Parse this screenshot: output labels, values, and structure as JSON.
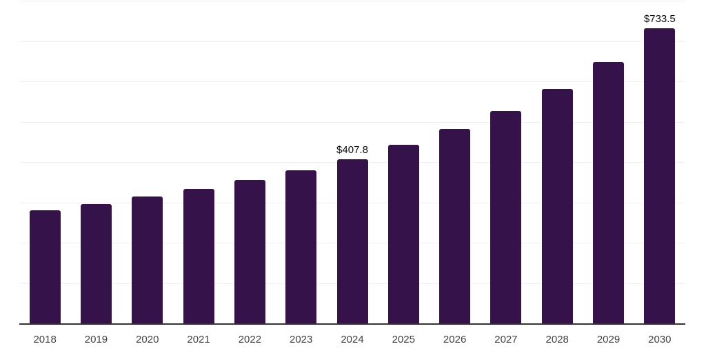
{
  "chart_data": {
    "type": "bar",
    "title": "",
    "xlabel": "",
    "ylabel": "",
    "categories": [
      "2018",
      "2019",
      "2020",
      "2021",
      "2022",
      "2023",
      "2024",
      "2025",
      "2026",
      "2027",
      "2028",
      "2029",
      "2030"
    ],
    "values": [
      281.5,
      298.1,
      316.6,
      334.4,
      356.6,
      380.4,
      407.8,
      444.3,
      484.6,
      528.4,
      583.0,
      649.9,
      733.5
    ],
    "data_labels": [
      {
        "index": 6,
        "text": "$407.8"
      },
      {
        "index": 12,
        "text": "$733.5"
      }
    ],
    "ylim": [
      0,
      800
    ],
    "gridline_step": 100,
    "grid": "horizontal-only",
    "y_tick_labels": "none",
    "legend": "none",
    "colors": {
      "bar": "#35124A",
      "background": "#FFFFFF",
      "gridline": "#F0F0F1",
      "axis_line": "#333333",
      "x_label": "#404040",
      "data_label": "#0D0D0D"
    }
  }
}
